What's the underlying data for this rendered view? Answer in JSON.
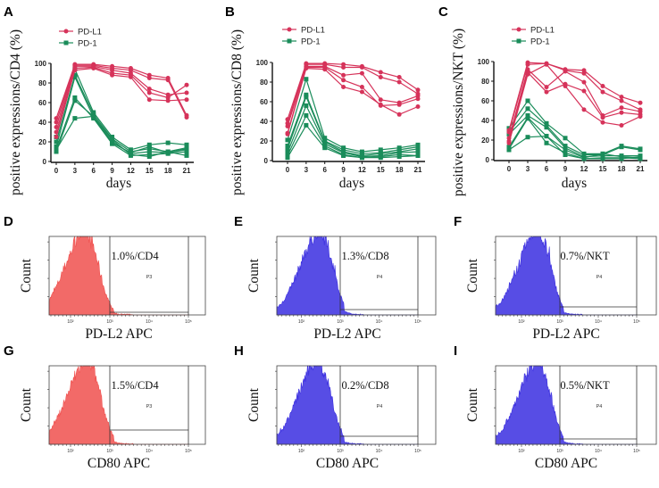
{
  "colors": {
    "pd_l1": "#d6335a",
    "pd_1": "#1a8c5a",
    "hist_red": "#f0504e",
    "hist_blue": "#3a2ee0"
  },
  "chart_data": [
    {
      "panel": "A",
      "type": "line",
      "ylabel": "positive expressions/CD4 (%)",
      "xlabel": "days",
      "x": [
        0,
        3,
        6,
        9,
        12,
        15,
        18,
        21
      ],
      "xticks": [
        "0",
        "3",
        "6",
        "9",
        "12",
        "15",
        "18",
        "21"
      ],
      "yticks": [
        "0",
        "20",
        "40",
        "60",
        "80",
        "100"
      ],
      "ylim": [
        0,
        100
      ],
      "legend": [
        "PD-L1",
        "PD-1"
      ],
      "legend_placement": "top-left",
      "series": [
        {
          "name": "PD-L1",
          "marker": "circle",
          "lines": [
            [
              44,
              99,
              99,
              97,
              95,
              88,
              85,
              47
            ],
            [
              40,
              98,
              98,
              95,
              93,
              85,
              83,
              45
            ],
            [
              35,
              97,
              97,
              93,
              90,
              74,
              68,
              70
            ],
            [
              30,
              95,
              96,
              90,
              88,
              70,
              65,
              78
            ],
            [
              25,
              93,
              95,
              88,
              86,
              63,
              62,
              63
            ]
          ]
        },
        {
          "name": "PD-1",
          "marker": "square",
          "lines": [
            [
              25,
              94,
              50,
              25,
              12,
              17,
              19,
              17
            ],
            [
              20,
              88,
              48,
              23,
              10,
              13,
              10,
              14
            ],
            [
              15,
              86,
              45,
              20,
              8,
              10,
              9,
              12
            ],
            [
              13,
              65,
              44,
              18,
              6,
              7,
              8,
              10
            ],
            [
              10,
              62,
              46,
              22,
              7,
              5,
              10,
              6
            ],
            [
              12,
              44,
              46,
              19,
              9,
              15,
              9,
              13
            ]
          ]
        }
      ]
    },
    {
      "panel": "B",
      "type": "line",
      "ylabel": "positive expressions/CD8 (%)",
      "xlabel": "days",
      "x": [
        0,
        3,
        6,
        9,
        12,
        15,
        18,
        21
      ],
      "xticks": [
        "0",
        "3",
        "6",
        "9",
        "12",
        "15",
        "18",
        "21"
      ],
      "yticks": [
        "0",
        "20",
        "40",
        "60",
        "80",
        "100"
      ],
      "ylim": [
        0,
        100
      ],
      "legend": [
        "PD-L1",
        "PD-1"
      ],
      "legend_placement": "top-left",
      "series": [
        {
          "name": "PD-L1",
          "marker": "circle",
          "lines": [
            [
              42,
              99,
              99,
              98,
              96,
              90,
              85,
              72
            ],
            [
              38,
              98,
              98,
              95,
              95,
              85,
              80,
              68
            ],
            [
              35,
              96,
              96,
              87,
              89,
              62,
              59,
              66
            ],
            [
              28,
              95,
              95,
              82,
              75,
              56,
              57,
              63
            ],
            [
              27,
              94,
              93,
              75,
              70,
              57,
              47,
              55
            ]
          ]
        },
        {
          "name": "PD-1",
          "marker": "square",
          "lines": [
            [
              21,
              83,
              23,
              13,
              9,
              11,
              13,
              16
            ],
            [
              15,
              67,
              20,
              11,
              7,
              8,
              11,
              14
            ],
            [
              12,
              65,
              19,
              9,
              5,
              7,
              9,
              12
            ],
            [
              8,
              56,
              17,
              8,
              4,
              5,
              8,
              9
            ],
            [
              5,
              46,
              15,
              6,
              3,
              4,
              6,
              5
            ],
            [
              3,
              36,
              13,
              5,
              3,
              3,
              4,
              5
            ]
          ]
        }
      ]
    },
    {
      "panel": "C",
      "type": "line",
      "ylabel": "positive expressions/NKT (%)",
      "xlabel": "days",
      "x": [
        0,
        3,
        6,
        9,
        12,
        15,
        18,
        21
      ],
      "xticks": [
        "0",
        "3",
        "6",
        "9",
        "12",
        "15",
        "18",
        "21"
      ],
      "yticks": [
        "0",
        "20",
        "40",
        "60",
        "80",
        "100"
      ],
      "ylim": [
        0,
        100
      ],
      "legend": [
        "PD-L1",
        "PD-1"
      ],
      "legend_placement": "top-left",
      "series": [
        {
          "name": "PD-L1",
          "marker": "circle",
          "lines": [
            [
              30,
              99,
              98,
              92,
              91,
              75,
              64,
              58
            ],
            [
              28,
              97,
              98,
              91,
              88,
              69,
              60,
              51
            ],
            [
              22,
              92,
              74,
              90,
              79,
              45,
              53,
              49
            ],
            [
              19,
              89,
              69,
              77,
              70,
              43,
              48,
              46
            ],
            [
              17,
              87,
              97,
              75,
              51,
              38,
              35,
              44
            ]
          ]
        },
        {
          "name": "PD-1",
          "marker": "square",
          "lines": [
            [
              32,
              60,
              37,
              22,
              6,
              6,
              14,
              11
            ],
            [
              28,
              52,
              35,
              14,
              5,
              5,
              13,
              10
            ],
            [
              26,
              45,
              33,
              12,
              3,
              4,
              4,
              4
            ],
            [
              13,
              43,
              24,
              10,
              2,
              6,
              3,
              2
            ],
            [
              11,
              42,
              17,
              7,
              1,
              2,
              2,
              1
            ],
            [
              10,
              23,
              24,
              5,
              1,
              1,
              1,
              3
            ]
          ]
        }
      ]
    },
    {
      "panel": "D",
      "type": "histogram",
      "ylabel": "Count",
      "xlabel": "PD-L2 APC",
      "x_scale": "log",
      "xticks": [
        "10²",
        "10³",
        "10⁴",
        "10⁵"
      ],
      "gate_name": "P3",
      "gate_text": "1.0%/CD4",
      "color": "red"
    },
    {
      "panel": "E",
      "type": "histogram",
      "ylabel": "Count",
      "xlabel": "PD-L2 APC",
      "x_scale": "log",
      "xticks": [
        "10²",
        "10³",
        "10⁴",
        "10⁵"
      ],
      "gate_name": "P4",
      "gate_text": "1.3%/CD8",
      "color": "blue"
    },
    {
      "panel": "F",
      "type": "histogram",
      "ylabel": "Count",
      "xlabel": "PD-L2 APC",
      "x_scale": "log",
      "xticks": [
        "10²",
        "10³",
        "10⁴",
        "10⁵"
      ],
      "gate_name": "P4",
      "gate_text": "0.7%/NKT",
      "color": "blue"
    },
    {
      "panel": "G",
      "type": "histogram",
      "ylabel": "Count",
      "xlabel": "CD80 APC",
      "x_scale": "log",
      "xticks": [
        "10²",
        "10³",
        "10⁴",
        "10⁵"
      ],
      "gate_name": "P3",
      "gate_text": "1.5%/CD4",
      "color": "red"
    },
    {
      "panel": "H",
      "type": "histogram",
      "ylabel": "Count",
      "xlabel": "CD80 APC",
      "x_scale": "log",
      "xticks": [
        "10²",
        "10³",
        "10⁴",
        "10⁵"
      ],
      "gate_name": "P4",
      "gate_text": "0.2%/CD8",
      "color": "blue"
    },
    {
      "panel": "I",
      "type": "histogram",
      "ylabel": "Count",
      "xlabel": "CD80 APC",
      "x_scale": "log",
      "xticks": [
        "10²",
        "10³",
        "10⁴",
        "10⁵"
      ],
      "gate_name": "P4",
      "gate_text": "0.5%/NKT",
      "color": "blue"
    }
  ]
}
